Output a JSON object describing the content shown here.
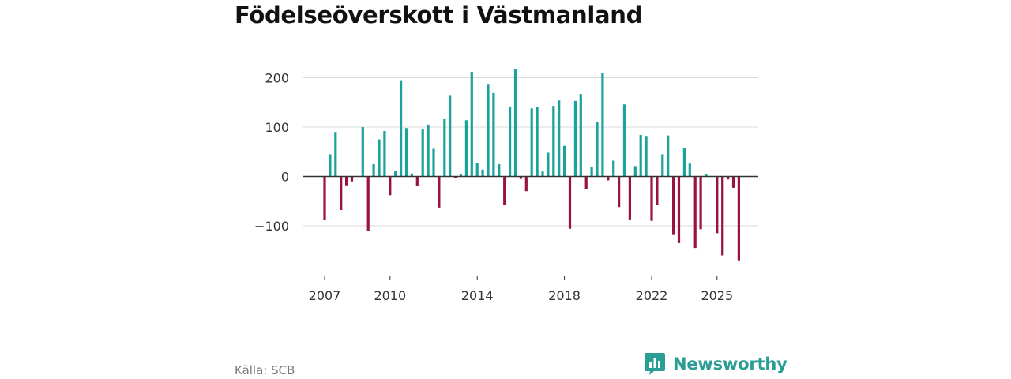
{
  "title": "Födelseöverskott i Västmanland",
  "source": "Källa: SCB",
  "brand": {
    "name": "Newsworthy",
    "icon": "newsworthy-logo-icon"
  },
  "colors": {
    "positive": "#1aa39a",
    "negative": "#9b1140",
    "grid": "#d9d9d9",
    "axis": "#333333"
  },
  "chart_data": {
    "type": "bar",
    "title": "Födelseöverskott i Västmanland",
    "xlabel": "",
    "ylabel": "",
    "frequency": "monthly",
    "start": "2007-01",
    "ylim": [
      -170,
      225
    ],
    "yticks": [
      200,
      100,
      0,
      -100
    ],
    "ytick_labels": [
      "200",
      "100",
      "0",
      "−100"
    ],
    "xticks": [
      {
        "label": "2007",
        "index": 0
      },
      {
        "label": "2010",
        "index": 12
      },
      {
        "label": "2014",
        "index": 28
      },
      {
        "label": "2018",
        "index": 44
      },
      {
        "label": "2022",
        "index": 60
      },
      {
        "label": "2025",
        "index": 72
      }
    ],
    "values": [
      -88,
      45,
      90,
      -68,
      -18,
      -10,
      0,
      100,
      -110,
      25,
      75,
      92,
      -38,
      12,
      195,
      98,
      6,
      -20,
      95,
      105,
      56,
      -63,
      116,
      165,
      -3,
      4,
      114,
      212,
      28,
      14,
      186,
      169,
      25,
      -58,
      140,
      218,
      -5,
      -30,
      138,
      141,
      10,
      48,
      143,
      154,
      62,
      -106,
      153,
      167,
      -25,
      20,
      111,
      210,
      -8,
      32,
      -62,
      146,
      -87,
      21,
      84,
      82,
      -90,
      -58,
      45,
      83,
      -117,
      -135,
      58,
      26,
      -145,
      -107,
      5,
      0,
      -115,
      -160,
      -6,
      -23,
      -170
    ]
  }
}
